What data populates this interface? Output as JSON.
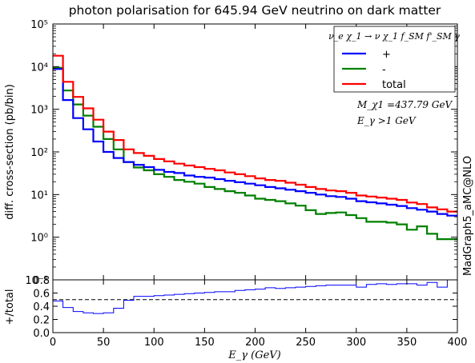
{
  "chart_data": {
    "type": "line",
    "title": "photon polarisation for 645.94 GeV neutrino on dark matter",
    "xlabel": "E_γ (GeV)",
    "ylabel": "diff. cross-section (pb/bin)",
    "ylabel_ratio": "+/total",
    "side_label": "MadGraph5_aMC@NLO",
    "annotations": [
      "M_χ1 =437.79 GeV",
      "E_γ >1 GeV"
    ],
    "legend_title": "ν_e χ_1 → ν χ_1 f_SM f'_SM γ",
    "legend_position": "top-right",
    "xlim": [
      0,
      400
    ],
    "ylim": [
      0.1,
      100000
    ],
    "yscale": "log",
    "ratio_ylim": [
      0,
      0.8
    ],
    "bin_width": 10,
    "x_ticks": [
      "0",
      "50",
      "100",
      "150",
      "200",
      "250",
      "300",
      "350",
      "400"
    ],
    "y_ticks": [
      "10⁻¹",
      "10⁰",
      "10¹",
      "10²",
      "10³",
      "10⁴",
      "10⁵"
    ],
    "ratio_ticks": [
      "0.0",
      "0.2",
      "0.4",
      "0.6",
      "0.8"
    ],
    "ratio_reference": 0.5,
    "bin_edges": [
      0,
      10,
      20,
      30,
      40,
      50,
      60,
      70,
      80,
      90,
      100,
      110,
      120,
      130,
      140,
      150,
      160,
      170,
      180,
      190,
      200,
      210,
      220,
      230,
      240,
      250,
      260,
      270,
      280,
      290,
      300,
      310,
      320,
      330,
      340,
      350,
      360,
      370,
      380,
      390,
      400
    ],
    "series": [
      {
        "name": "+",
        "color": "#0000ff",
        "values": [
          8800,
          1650,
          620,
          340,
          175,
          100,
          72,
          58,
          50,
          44,
          38,
          34,
          32,
          28,
          26,
          25,
          23,
          21,
          19.5,
          18,
          16.5,
          15,
          14,
          13,
          12,
          11,
          10,
          9.2,
          8.8,
          8,
          7,
          6.6,
          6.2,
          5.8,
          5.4,
          4.8,
          4.4,
          4,
          3.5,
          3.2
        ]
      },
      {
        "name": "-",
        "color": "#008000",
        "values": [
          9400,
          2750,
          1300,
          710,
          390,
          200,
          115,
          58,
          43,
          37,
          30,
          26,
          22,
          20,
          18,
          15,
          13.5,
          12,
          11,
          9.5,
          8,
          7.5,
          7,
          6.2,
          5.5,
          4.3,
          3.5,
          3.7,
          3.8,
          3.3,
          2.8,
          2.3,
          2.3,
          2.2,
          2.0,
          1.5,
          1.8,
          1.2,
          0.9,
          0.9
        ]
      },
      {
        "name": "total",
        "color": "#ff0000",
        "values": [
          18000,
          4400,
          1950,
          1050,
          570,
          300,
          190,
          115,
          94,
          81,
          68,
          60,
          53,
          48,
          44,
          40,
          37,
          33,
          30,
          27,
          24,
          22,
          21,
          19,
          17,
          15,
          13.5,
          12.5,
          12,
          11,
          9.5,
          9,
          8.5,
          8,
          7.5,
          6.5,
          6,
          5,
          4.5,
          4
        ]
      }
    ],
    "ratio": [
      0.48,
      0.38,
      0.32,
      0.3,
      0.29,
      0.3,
      0.37,
      0.49,
      0.55,
      0.55,
      0.56,
      0.57,
      0.58,
      0.59,
      0.6,
      0.61,
      0.62,
      0.62,
      0.64,
      0.65,
      0.66,
      0.68,
      0.67,
      0.68,
      0.69,
      0.7,
      0.71,
      0.72,
      0.72,
      0.72,
      0.69,
      0.73,
      0.74,
      0.73,
      0.74,
      0.74,
      0.72,
      0.76,
      0.69,
      0.8
    ]
  }
}
